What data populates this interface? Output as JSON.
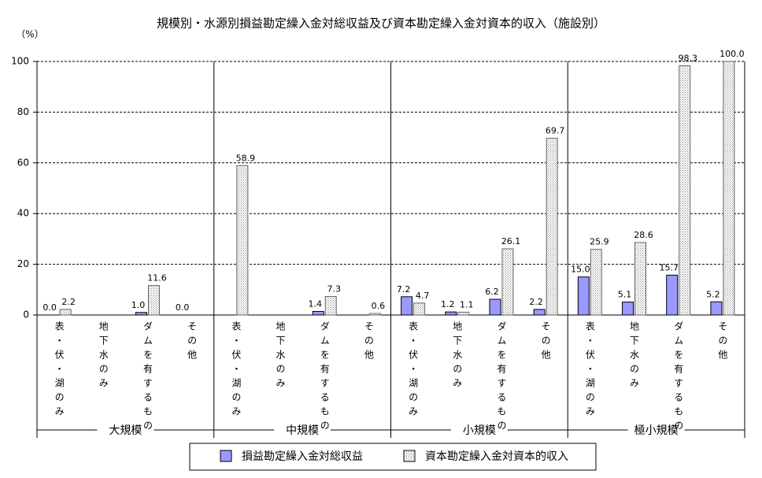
{
  "chart_data": {
    "type": "bar",
    "title": "規模別・水源別損益勘定繰入金対総収益及び資本勘定繰入金対資本的収入（施設別）",
    "y_label": "（%）",
    "groups": [
      "大規模",
      "中規模",
      "小規模",
      "極小規模"
    ],
    "categories": [
      "表・伏・湖のみ",
      "地下水のみ",
      "ダムを有するもの",
      "その他",
      "表・伏・湖のみ",
      "地下水のみ",
      "ダムを有するもの",
      "その他",
      "表・伏・湖のみ",
      "地下水のみ",
      "ダムを有するもの",
      "その他",
      "表・伏・湖のみ",
      "地下水のみ",
      "ダムを有するもの",
      "その他"
    ],
    "series": [
      {
        "name": "損益勘定繰入金対総収益",
        "color": "#9999ff",
        "values": [
          0,
          null,
          1,
          0,
          null,
          null,
          1.4,
          null,
          7.2,
          1.2,
          6.2,
          2.2,
          15,
          5.1,
          15.7,
          5.2
        ],
        "value_labels": [
          "0.0",
          null,
          "1.0",
          "0.0",
          null,
          null,
          "1.4",
          null,
          "7.2",
          "1.2",
          "6.2",
          "2.2",
          "15.0",
          "5.1",
          "15.7",
          "5.2"
        ]
      },
      {
        "name": "資本勘定繰入金対資本的収入",
        "color": "#c8c8d0",
        "values": [
          2.2,
          null,
          11.6,
          null,
          58.9,
          null,
          7.3,
          0.6,
          4.7,
          1.1,
          26.1,
          69.7,
          25.9,
          28.6,
          98.3,
          100
        ],
        "value_labels": [
          "2.2",
          null,
          "11.6",
          null,
          "58.9",
          null,
          "7.3",
          "0.6",
          "4.7",
          "1.1",
          "26.1",
          "69.7",
          "25.9",
          "28.6",
          "98.3",
          "100.0"
        ]
      }
    ],
    "ylim": [
      0,
      100
    ],
    "yticks": [
      0,
      20,
      40,
      60,
      80,
      100
    ],
    "grid": true
  }
}
